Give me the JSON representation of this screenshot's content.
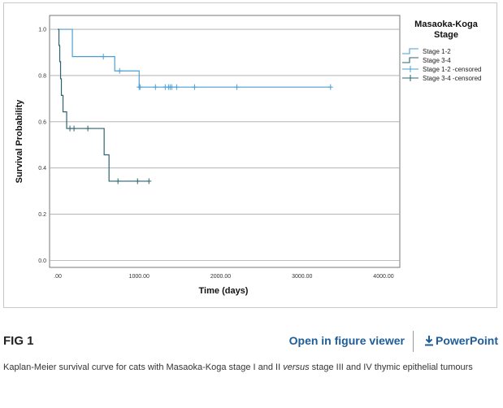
{
  "figure": {
    "label": "FIG 1",
    "open_viewer_label": "Open in figure viewer",
    "powerpoint_label": "PowerPoint",
    "caption_part1": "Kaplan-Meier survival curve for cats with Masaoka-Koga stage I and II ",
    "caption_italic": "versus",
    "caption_part2": " stage III and IV thymic epithelial tumours",
    "link_color": "#1e5d97"
  },
  "chart_data": {
    "type": "line",
    "subtype": "kaplan-meier-step",
    "xlabel": "Time (days)",
    "ylabel": "Survival Probability",
    "xlim": [
      -100,
      4200
    ],
    "ylim": [
      -0.03,
      1.06
    ],
    "x_ticks": [
      0,
      1000,
      2000,
      3000,
      4000
    ],
    "x_tick_labels": [
      ".00",
      "1000.00",
      "2000.00",
      "3000.00",
      "4000.00"
    ],
    "y_ticks": [
      0.0,
      0.2,
      0.4,
      0.6,
      0.8,
      1.0
    ],
    "y_tick_labels": [
      "0.0",
      "0.2",
      "0.4",
      "0.6",
      "0.8",
      "1.0"
    ],
    "grid": "horizontal",
    "legend": {
      "title_line1": "Masaoka-Koga",
      "title_line2": "Stage",
      "placement": "right",
      "entries": [
        "Stage 1-2",
        "Stage 3-4",
        "Stage 1-2 -censored",
        "Stage 3-4 -censored"
      ]
    },
    "series": [
      {
        "name": "Stage 1-2",
        "color": "#4a9fd6",
        "steps": [
          [
            0,
            1.0
          ],
          [
            180,
            0.882
          ],
          [
            700,
            0.82
          ],
          [
            1000,
            0.75
          ],
          [
            3350,
            0.75
          ]
        ],
        "censored": [
          [
            560,
            0.882
          ],
          [
            760,
            0.82
          ],
          [
            1000,
            0.75
          ],
          [
            1010,
            0.75
          ],
          [
            1200,
            0.75
          ],
          [
            1320,
            0.75
          ],
          [
            1360,
            0.75
          ],
          [
            1380,
            0.75
          ],
          [
            1400,
            0.75
          ],
          [
            1460,
            0.75
          ],
          [
            1680,
            0.75
          ],
          [
            2200,
            0.75
          ],
          [
            3350,
            0.75
          ]
        ]
      },
      {
        "name": "Stage 3-4",
        "color": "#2b6470",
        "steps": [
          [
            0,
            1.0
          ],
          [
            15,
            0.93
          ],
          [
            25,
            0.86
          ],
          [
            35,
            0.786
          ],
          [
            45,
            0.714
          ],
          [
            65,
            0.643
          ],
          [
            110,
            0.571
          ],
          [
            570,
            0.457
          ],
          [
            630,
            0.343
          ],
          [
            1120,
            0.343
          ]
        ],
        "censored": [
          [
            150,
            0.571
          ],
          [
            200,
            0.571
          ],
          [
            370,
            0.571
          ],
          [
            740,
            0.343
          ],
          [
            980,
            0.343
          ],
          [
            1120,
            0.343
          ]
        ]
      }
    ]
  }
}
